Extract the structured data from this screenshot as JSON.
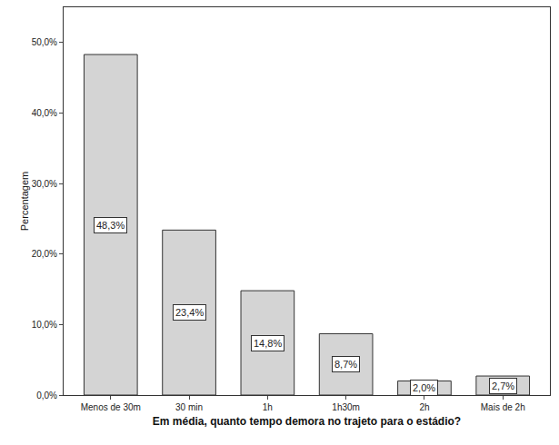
{
  "chart_data": {
    "type": "bar",
    "x_label": "Em média, quanto tempo demora no trajeto para o estádio?",
    "y_label": "Percentagem",
    "categories": [
      "Menos de 30m",
      "30 min",
      "1h",
      "1h30m",
      "2h",
      "Mais de 2h"
    ],
    "values": [
      48.3,
      23.4,
      14.8,
      8.7,
      2.0,
      2.7
    ],
    "value_labels": [
      "48,3%",
      "23,4%",
      "14,8%",
      "8,7%",
      "2,0%",
      "2,7%"
    ],
    "data_labels": true,
    "color": "#d4d4d4",
    "ylim": [
      0,
      55
    ],
    "yticks": [
      {
        "value": 0,
        "label": "0,0%"
      },
      {
        "value": 10,
        "label": "10,0%"
      },
      {
        "value": 20,
        "label": "20,0%"
      },
      {
        "value": 30,
        "label": "30,0%"
      },
      {
        "value": 40,
        "label": "40,0%"
      },
      {
        "value": 50,
        "label": "50,0%"
      }
    ],
    "grid": false
  }
}
